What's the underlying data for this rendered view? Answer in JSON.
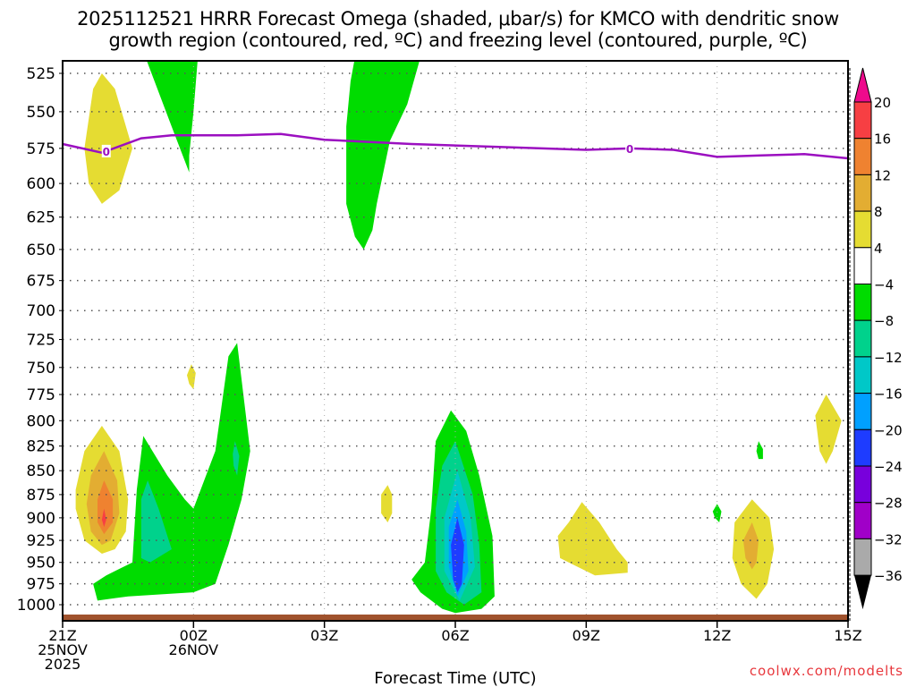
{
  "title": {
    "line1": "2025112521 HRRR Forecast Omega (shaded, μbar/s) for KMCO with dendritic snow",
    "line2": "growth region (contoured, red, ºC) and freezing level (contoured, purple, ºC)"
  },
  "credit": "coolwx.com/modelts",
  "chart_data": {
    "type": "heatmap",
    "title": "2025112521 HRRR Forecast Omega (shaded, μbar/s) for KMCO with dendritic snow growth region (contoured, red, ºC) and freezing level (contoured, purple, ºC)",
    "xlabel": "Forecast Time (UTC)",
    "ylabel": "Pressure (hPa)",
    "x_range_hours": [
      0,
      18
    ],
    "y_range_hPa": [
      515,
      1020
    ],
    "y_scale": "log",
    "grid": true,
    "x_ticks": [
      {
        "hour": 0,
        "label": [
          "21Z",
          "25NOV",
          "2025"
        ]
      },
      {
        "hour": 3,
        "label": [
          "00Z",
          "26NOV"
        ]
      },
      {
        "hour": 6,
        "label": [
          "03Z"
        ]
      },
      {
        "hour": 9,
        "label": [
          "06Z"
        ]
      },
      {
        "hour": 12,
        "label": [
          "09Z"
        ]
      },
      {
        "hour": 15,
        "label": [
          "12Z"
        ]
      },
      {
        "hour": 18,
        "label": [
          "15Z"
        ]
      }
    ],
    "y_ticks": [
      525,
      550,
      575,
      600,
      625,
      650,
      675,
      700,
      725,
      750,
      775,
      800,
      825,
      850,
      875,
      900,
      925,
      950,
      975,
      1000
    ],
    "colorbar": {
      "unit": "μbar/s",
      "levels": [
        {
          "label": "20",
          "color": "#f73f43"
        },
        {
          "label": "16",
          "color": "#ef8230"
        },
        {
          "label": "12",
          "color": "#e3ad32"
        },
        {
          "label": "8",
          "color": "#e5dc32"
        },
        {
          "label": "4",
          "color": "#ffffff"
        },
        {
          "label": "−4",
          "color": "#00dc00"
        },
        {
          "label": "−8",
          "color": "#00d28c"
        },
        {
          "label": "−12",
          "color": "#00c8c8"
        },
        {
          "label": "−16",
          "color": "#00a0ff"
        },
        {
          "label": "−20",
          "color": "#1e3cff"
        },
        {
          "label": "−24",
          "color": "#7800dc"
        },
        {
          "label": "−28",
          "color": "#a000c8"
        },
        {
          "label": "−32",
          "color": "#aaaaaa"
        },
        {
          "label": "−36",
          "color": ""
        }
      ],
      "top_arrow_color": "#ee0a8c",
      "bottom_arrow_color": "#000000"
    },
    "freezing_level": {
      "color": "#9b0fc0",
      "label": "0",
      "label_at_hours": [
        1,
        13
      ],
      "points": [
        [
          0,
          572
        ],
        [
          0.9,
          578
        ],
        [
          1.8,
          568
        ],
        [
          2.5,
          566
        ],
        [
          4,
          566
        ],
        [
          5,
          565
        ],
        [
          6,
          569
        ],
        [
          8,
          572
        ],
        [
          10,
          574
        ],
        [
          12,
          576
        ],
        [
          13,
          575
        ],
        [
          14,
          576
        ],
        [
          15,
          581
        ],
        [
          16,
          580
        ],
        [
          17,
          579
        ],
        [
          18,
          582
        ]
      ]
    },
    "surface_terrain_color": "#a0522d",
    "omega_regions": [
      {
        "level": "8",
        "color": "#e5dc32",
        "points": [
          [
            0.9,
            525
          ],
          [
            1.2,
            535
          ],
          [
            1.6,
            575
          ],
          [
            1.3,
            605
          ],
          [
            0.9,
            615
          ],
          [
            0.6,
            600
          ],
          [
            0.5,
            575
          ],
          [
            0.7,
            535
          ]
        ]
      },
      {
        "level": "-4",
        "color": "#00dc00",
        "points": [
          [
            1.9,
            515
          ],
          [
            3.1,
            515
          ],
          [
            3,
            550
          ],
          [
            2.9,
            580
          ],
          [
            2.9,
            592
          ],
          [
            2.5,
            560
          ]
        ]
      },
      {
        "level": "-4",
        "color": "#00dc00",
        "points": [
          [
            6.7,
            515
          ],
          [
            8.2,
            515
          ],
          [
            7.9,
            545
          ],
          [
            7.5,
            570
          ],
          [
            7.2,
            615
          ],
          [
            7.1,
            635
          ],
          [
            6.9,
            650
          ],
          [
            6.7,
            640
          ],
          [
            6.5,
            615
          ],
          [
            6.5,
            560
          ],
          [
            6.6,
            530
          ]
        ]
      },
      {
        "level": "8",
        "color": "#e5dc32",
        "points": [
          [
            2.95,
            747
          ],
          [
            3.05,
            755
          ],
          [
            3.0,
            770
          ],
          [
            2.9,
            765
          ],
          [
            2.85,
            757
          ]
        ]
      },
      {
        "level": "8",
        "color": "#e5dc32",
        "points": [
          [
            0.9,
            805
          ],
          [
            1.3,
            830
          ],
          [
            1.5,
            880
          ],
          [
            1.45,
            915
          ],
          [
            1.2,
            935
          ],
          [
            0.9,
            940
          ],
          [
            0.5,
            925
          ],
          [
            0.3,
            890
          ],
          [
            0.3,
            870
          ],
          [
            0.5,
            830
          ]
        ]
      },
      {
        "level": "12",
        "color": "#e3ad32",
        "points": [
          [
            0.95,
            830
          ],
          [
            1.25,
            860
          ],
          [
            1.3,
            895
          ],
          [
            1.1,
            925
          ],
          [
            0.9,
            930
          ],
          [
            0.65,
            915
          ],
          [
            0.55,
            885
          ],
          [
            0.65,
            855
          ]
        ]
      },
      {
        "level": "16",
        "color": "#ef8230",
        "points": [
          [
            0.95,
            860
          ],
          [
            1.15,
            880
          ],
          [
            1.15,
            905
          ],
          [
            0.95,
            918
          ],
          [
            0.8,
            905
          ],
          [
            0.8,
            880
          ]
        ]
      },
      {
        "level": "20",
        "color": "#f73f43",
        "points": [
          [
            0.95,
            890
          ],
          [
            1.0,
            902
          ],
          [
            0.95,
            910
          ],
          [
            0.9,
            902
          ]
        ]
      },
      {
        "level": "-4",
        "color": "#00dc00",
        "points": [
          [
            1.85,
            815
          ],
          [
            2.4,
            855
          ],
          [
            2.8,
            880
          ],
          [
            3.0,
            890
          ],
          [
            3.5,
            830
          ],
          [
            3.8,
            740
          ],
          [
            4.0,
            728
          ],
          [
            4.3,
            830
          ],
          [
            4.1,
            880
          ],
          [
            3.8,
            930
          ],
          [
            3.5,
            975
          ],
          [
            3.0,
            985
          ],
          [
            1.5,
            990
          ],
          [
            0.8,
            995
          ],
          [
            0.7,
            975
          ],
          [
            1.0,
            965
          ],
          [
            1.6,
            950
          ],
          [
            1.7,
            870
          ]
        ]
      },
      {
        "level": "-8",
        "color": "#00d28c",
        "points": [
          [
            1.95,
            860
          ],
          [
            2.2,
            890
          ],
          [
            2.5,
            935
          ],
          [
            2.0,
            950
          ],
          [
            1.8,
            945
          ],
          [
            1.8,
            880
          ]
        ]
      },
      {
        "level": "-8",
        "color": "#00d28c",
        "points": [
          [
            3.95,
            820
          ],
          [
            4.05,
            835
          ],
          [
            4.0,
            855
          ],
          [
            3.92,
            845
          ],
          [
            3.9,
            833
          ]
        ]
      },
      {
        "level": "8",
        "color": "#e5dc32",
        "points": [
          [
            7.45,
            865
          ],
          [
            7.55,
            875
          ],
          [
            7.55,
            895
          ],
          [
            7.45,
            905
          ],
          [
            7.3,
            895
          ],
          [
            7.3,
            875
          ]
        ]
      },
      {
        "level": "-4",
        "color": "#00dc00",
        "points": [
          [
            8.9,
            790
          ],
          [
            9.25,
            810
          ],
          [
            9.55,
            855
          ],
          [
            9.85,
            920
          ],
          [
            9.9,
            990
          ],
          [
            9.6,
            1005
          ],
          [
            9.0,
            1010
          ],
          [
            8.7,
            1005
          ],
          [
            8.2,
            985
          ],
          [
            8.0,
            970
          ],
          [
            8.3,
            950
          ],
          [
            8.45,
            890
          ],
          [
            8.55,
            820
          ]
        ]
      },
      {
        "level": "-8",
        "color": "#00d28c",
        "points": [
          [
            9.0,
            820
          ],
          [
            9.4,
            875
          ],
          [
            9.55,
            930
          ],
          [
            9.6,
            985
          ],
          [
            9.2,
            1000
          ],
          [
            8.8,
            985
          ],
          [
            8.55,
            960
          ],
          [
            8.55,
            890
          ],
          [
            8.7,
            845
          ]
        ]
      },
      {
        "level": "-12",
        "color": "#00c8c8",
        "points": [
          [
            9.05,
            850
          ],
          [
            9.35,
            900
          ],
          [
            9.45,
            955
          ],
          [
            9.1,
            995
          ],
          [
            8.75,
            960
          ],
          [
            8.75,
            900
          ]
        ]
      },
      {
        "level": "-16",
        "color": "#00a0ff",
        "points": [
          [
            9.05,
            880
          ],
          [
            9.25,
            915
          ],
          [
            9.3,
            960
          ],
          [
            9.05,
            990
          ],
          [
            8.85,
            955
          ],
          [
            8.85,
            910
          ]
        ]
      },
      {
        "level": "-20",
        "color": "#1e3cff",
        "points": [
          [
            9.05,
            900
          ],
          [
            9.2,
            930
          ],
          [
            9.15,
            975
          ],
          [
            9.05,
            985
          ],
          [
            8.95,
            970
          ],
          [
            8.9,
            930
          ]
        ]
      },
      {
        "level": "8",
        "color": "#e5dc32",
        "points": [
          [
            11.9,
            883
          ],
          [
            12.3,
            905
          ],
          [
            12.7,
            935
          ],
          [
            12.95,
            950
          ],
          [
            12.95,
            962
          ],
          [
            12.2,
            965
          ],
          [
            11.8,
            955
          ],
          [
            11.4,
            945
          ],
          [
            11.35,
            920
          ],
          [
            11.6,
            905
          ]
        ]
      },
      {
        "level": "-4",
        "color": "#00dc00",
        "points": [
          [
            15.0,
            885
          ],
          [
            15.1,
            893
          ],
          [
            15.05,
            905
          ],
          [
            14.95,
            900
          ],
          [
            14.9,
            893
          ]
        ]
      },
      {
        "level": "-4",
        "color": "#00dc00",
        "points": [
          [
            15.95,
            820
          ],
          [
            16.05,
            828
          ],
          [
            16.05,
            838
          ],
          [
            15.95,
            838
          ],
          [
            15.9,
            830
          ]
        ]
      },
      {
        "level": "8",
        "color": "#e5dc32",
        "points": [
          [
            17.5,
            775
          ],
          [
            17.85,
            800
          ],
          [
            17.65,
            830
          ],
          [
            17.5,
            843
          ],
          [
            17.35,
            830
          ],
          [
            17.25,
            795
          ]
        ]
      },
      {
        "level": "8",
        "color": "#e5dc32",
        "points": [
          [
            15.8,
            880
          ],
          [
            16.2,
            900
          ],
          [
            16.3,
            935
          ],
          [
            16.15,
            975
          ],
          [
            15.9,
            993
          ],
          [
            15.55,
            975
          ],
          [
            15.35,
            945
          ],
          [
            15.4,
            905
          ]
        ]
      },
      {
        "level": "12",
        "color": "#e3ad32",
        "points": [
          [
            15.8,
            905
          ],
          [
            15.95,
            925
          ],
          [
            15.9,
            950
          ],
          [
            15.8,
            958
          ],
          [
            15.65,
            945
          ],
          [
            15.6,
            925
          ]
        ]
      }
    ]
  }
}
